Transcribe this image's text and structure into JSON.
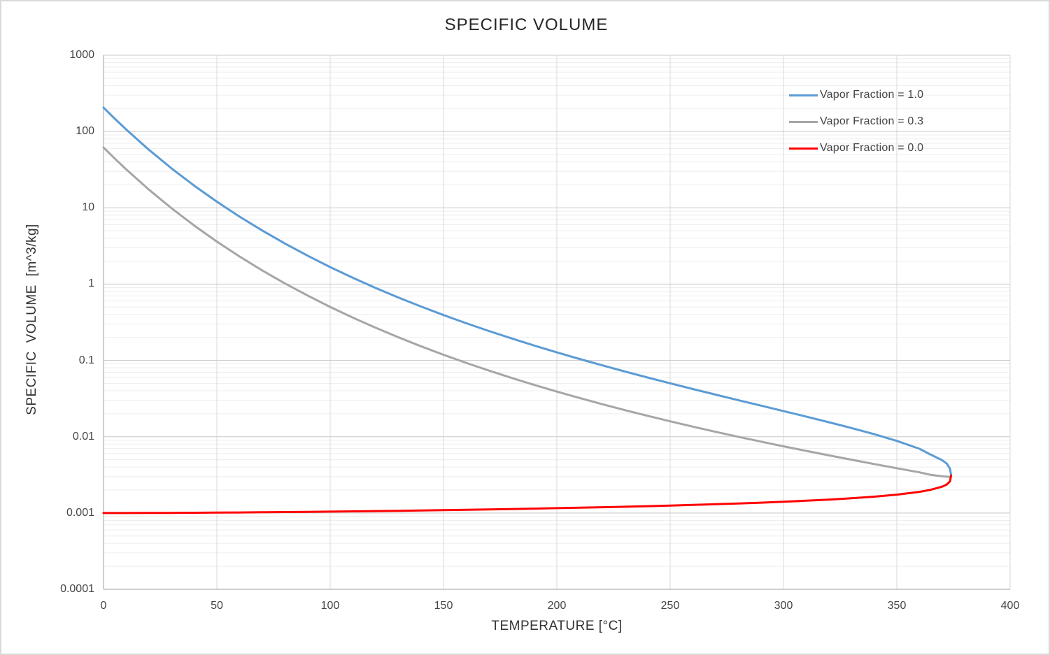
{
  "chart_data": {
    "type": "line",
    "title": "SPECIFIC VOLUME",
    "xlabel": "TEMPERATURE [°C]",
    "ylabel": "SPECIFIC VOLUME [m^3/kg]",
    "x_axis": {
      "min": 0,
      "max": 400,
      "ticks": [
        0,
        50,
        100,
        150,
        200,
        250,
        300,
        350,
        400
      ]
    },
    "y_axis": {
      "scale": "log10",
      "min_exp": -4,
      "max_exp": 3,
      "ticks": [
        {
          "label": "1000",
          "exp": 3
        },
        {
          "label": "100",
          "exp": 2
        },
        {
          "label": "10",
          "exp": 1
        },
        {
          "label": "1",
          "exp": 0
        },
        {
          "label": "0.1",
          "exp": -1
        },
        {
          "label": "0.01",
          "exp": -2
        },
        {
          "label": "0.001",
          "exp": -3
        },
        {
          "label": "0.0001",
          "exp": -4
        }
      ]
    },
    "grid": {
      "major": true,
      "minor": true,
      "vertical": true
    },
    "legend_position": "top-right",
    "colors": {
      "grid_major": "#c9c9c9",
      "grid_minor": "#ededed",
      "grid_vertical": "#d9d9d9",
      "axis_line": "#bfbfbf",
      "canvas_border": "#d9d9d9",
      "title_text": "#262626",
      "label_text": "#454545"
    },
    "x": [
      0,
      5,
      10,
      20,
      30,
      40,
      50,
      60,
      70,
      80,
      90,
      100,
      110,
      120,
      130,
      140,
      150,
      160,
      170,
      180,
      190,
      200,
      210,
      220,
      230,
      240,
      250,
      260,
      270,
      280,
      290,
      300,
      310,
      320,
      330,
      340,
      350,
      360,
      365,
      370,
      372,
      373.5,
      373.95
    ],
    "series": [
      {
        "name": "Vapor Fraction = 1.0",
        "color": "#5B9BD5",
        "values": [
          206.0,
          147.0,
          106.3,
          57.76,
          32.88,
          19.52,
          12.03,
          7.671,
          5.042,
          3.407,
          2.361,
          1.672,
          1.21,
          0.8919,
          0.6685,
          0.5089,
          0.3928,
          0.3071,
          0.2428,
          0.1941,
          0.1565,
          0.1274,
          0.1044,
          0.08619,
          0.07158,
          0.05976,
          0.05013,
          0.04221,
          0.03564,
          0.03017,
          0.02557,
          0.02167,
          0.01835,
          0.01549,
          0.013,
          0.0108,
          0.008813,
          0.006945,
          0.00582,
          0.004925,
          0.004451,
          0.0038,
          0.003106
        ]
      },
      {
        "name": "Vapor Fraction = 0.3",
        "color": "#A6A6A6",
        "values": [
          61.8,
          44.1,
          31.89,
          17.33,
          9.865,
          5.857,
          3.61,
          2.302,
          1.513,
          1.023,
          0.709,
          0.5023,
          0.3637,
          0.2683,
          0.2013,
          0.1534,
          0.1186,
          0.0929,
          0.07361,
          0.05902,
          0.04775,
          0.03903,
          0.03216,
          0.02669,
          0.02232,
          0.01879,
          0.01591,
          0.01356,
          0.0116,
          0.009984,
          0.008627,
          0.007484,
          0.006518,
          0.005696,
          0.004992,
          0.004386,
          0.003862,
          0.003409,
          0.003158,
          0.003027,
          0.002991,
          0.00296,
          0.003106
        ]
      },
      {
        "name": "Vapor Fraction = 0.0",
        "color": "#FF0000",
        "values": [
          0.001,
          0.001,
          0.001,
          0.001002,
          0.001004,
          0.001008,
          0.001012,
          0.001017,
          0.001023,
          0.001029,
          0.001036,
          0.001043,
          0.001052,
          0.00106,
          0.00107,
          0.00108,
          0.001091,
          0.001102,
          0.001114,
          0.001127,
          0.001141,
          0.001157,
          0.001173,
          0.00119,
          0.001209,
          0.001229,
          0.001251,
          0.001276,
          0.001302,
          0.001332,
          0.001366,
          0.001404,
          0.001447,
          0.001499,
          0.001561,
          0.001638,
          0.00174,
          0.001893,
          0.002017,
          0.002213,
          0.002365,
          0.0026,
          0.003106
        ]
      }
    ]
  }
}
